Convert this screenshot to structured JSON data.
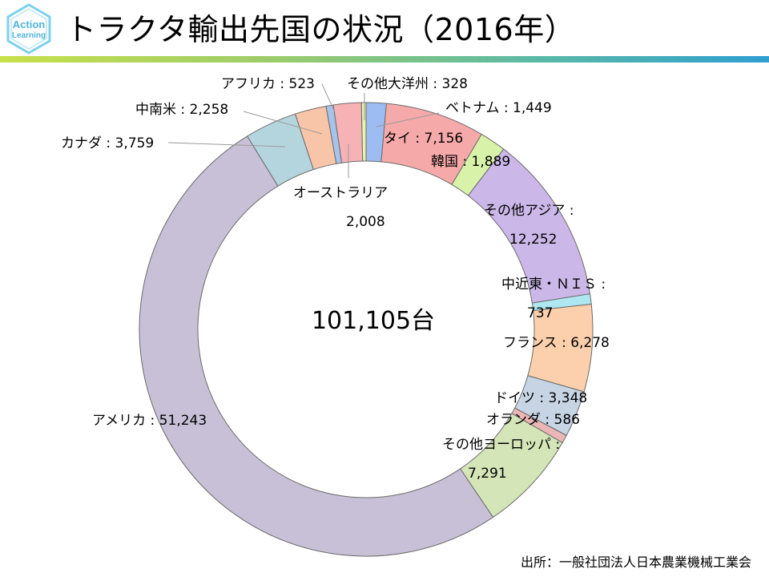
{
  "header": {
    "title": "トラクタ輸出先国の状況（2016年）",
    "logo_text_top": "Action",
    "logo_text_bottom": "Learning"
  },
  "footer": {
    "source": "出所：一般社団法人日本農業機械工業会"
  },
  "chart_data": {
    "type": "pie",
    "subtype": "doughnut",
    "title": "",
    "center_label": "101,105台",
    "start": "top",
    "direction": "clockwise",
    "slices": [
      {
        "name": "ベトナム",
        "value": 1449,
        "value_label": "1,449",
        "color": "#9dbcf2"
      },
      {
        "name": "タイ",
        "value": 7156,
        "value_label": "7,156",
        "color": "#f6a9a9"
      },
      {
        "name": "韓国",
        "value": 1889,
        "value_label": "1,889",
        "color": "#d9f2a9"
      },
      {
        "name": "その他アジア",
        "value": 12252,
        "value_label": "12,252",
        "color": "#cbb7e8"
      },
      {
        "name": "中近東・ＮＩＳ",
        "value": 737,
        "value_label": "737",
        "color": "#aee7f1"
      },
      {
        "name": "フランス",
        "value": 6278,
        "value_label": "6,278",
        "color": "#fcd0ac"
      },
      {
        "name": "ドイツ",
        "value": 3348,
        "value_label": "3,348",
        "color": "#c6d4e3"
      },
      {
        "name": "オランダ",
        "value": 586,
        "value_label": "586",
        "color": "#ecb6b6"
      },
      {
        "name": "その他ヨーロッパ",
        "value": 7291,
        "value_label": "7,291",
        "color": "#d4e5b8"
      },
      {
        "name": "アメリカ",
        "value": 51243,
        "value_label": "51,243",
        "color": "#c7c0d6"
      },
      {
        "name": "カナダ",
        "value": 3759,
        "value_label": "3,759",
        "color": "#b5d5de"
      },
      {
        "name": "中南米",
        "value": 2258,
        "value_label": "2,258",
        "color": "#f8c5a8"
      },
      {
        "name": "アフリカ",
        "value": 523,
        "value_label": "523",
        "color": "#a7c3ea"
      },
      {
        "name": "オーストラリア",
        "value": 2008,
        "value_label": "2,008",
        "color": "#f7b2b6"
      },
      {
        "name": "その他大洋州",
        "value": 328,
        "value_label": "328",
        "color": "#e7f5a8"
      }
    ]
  }
}
